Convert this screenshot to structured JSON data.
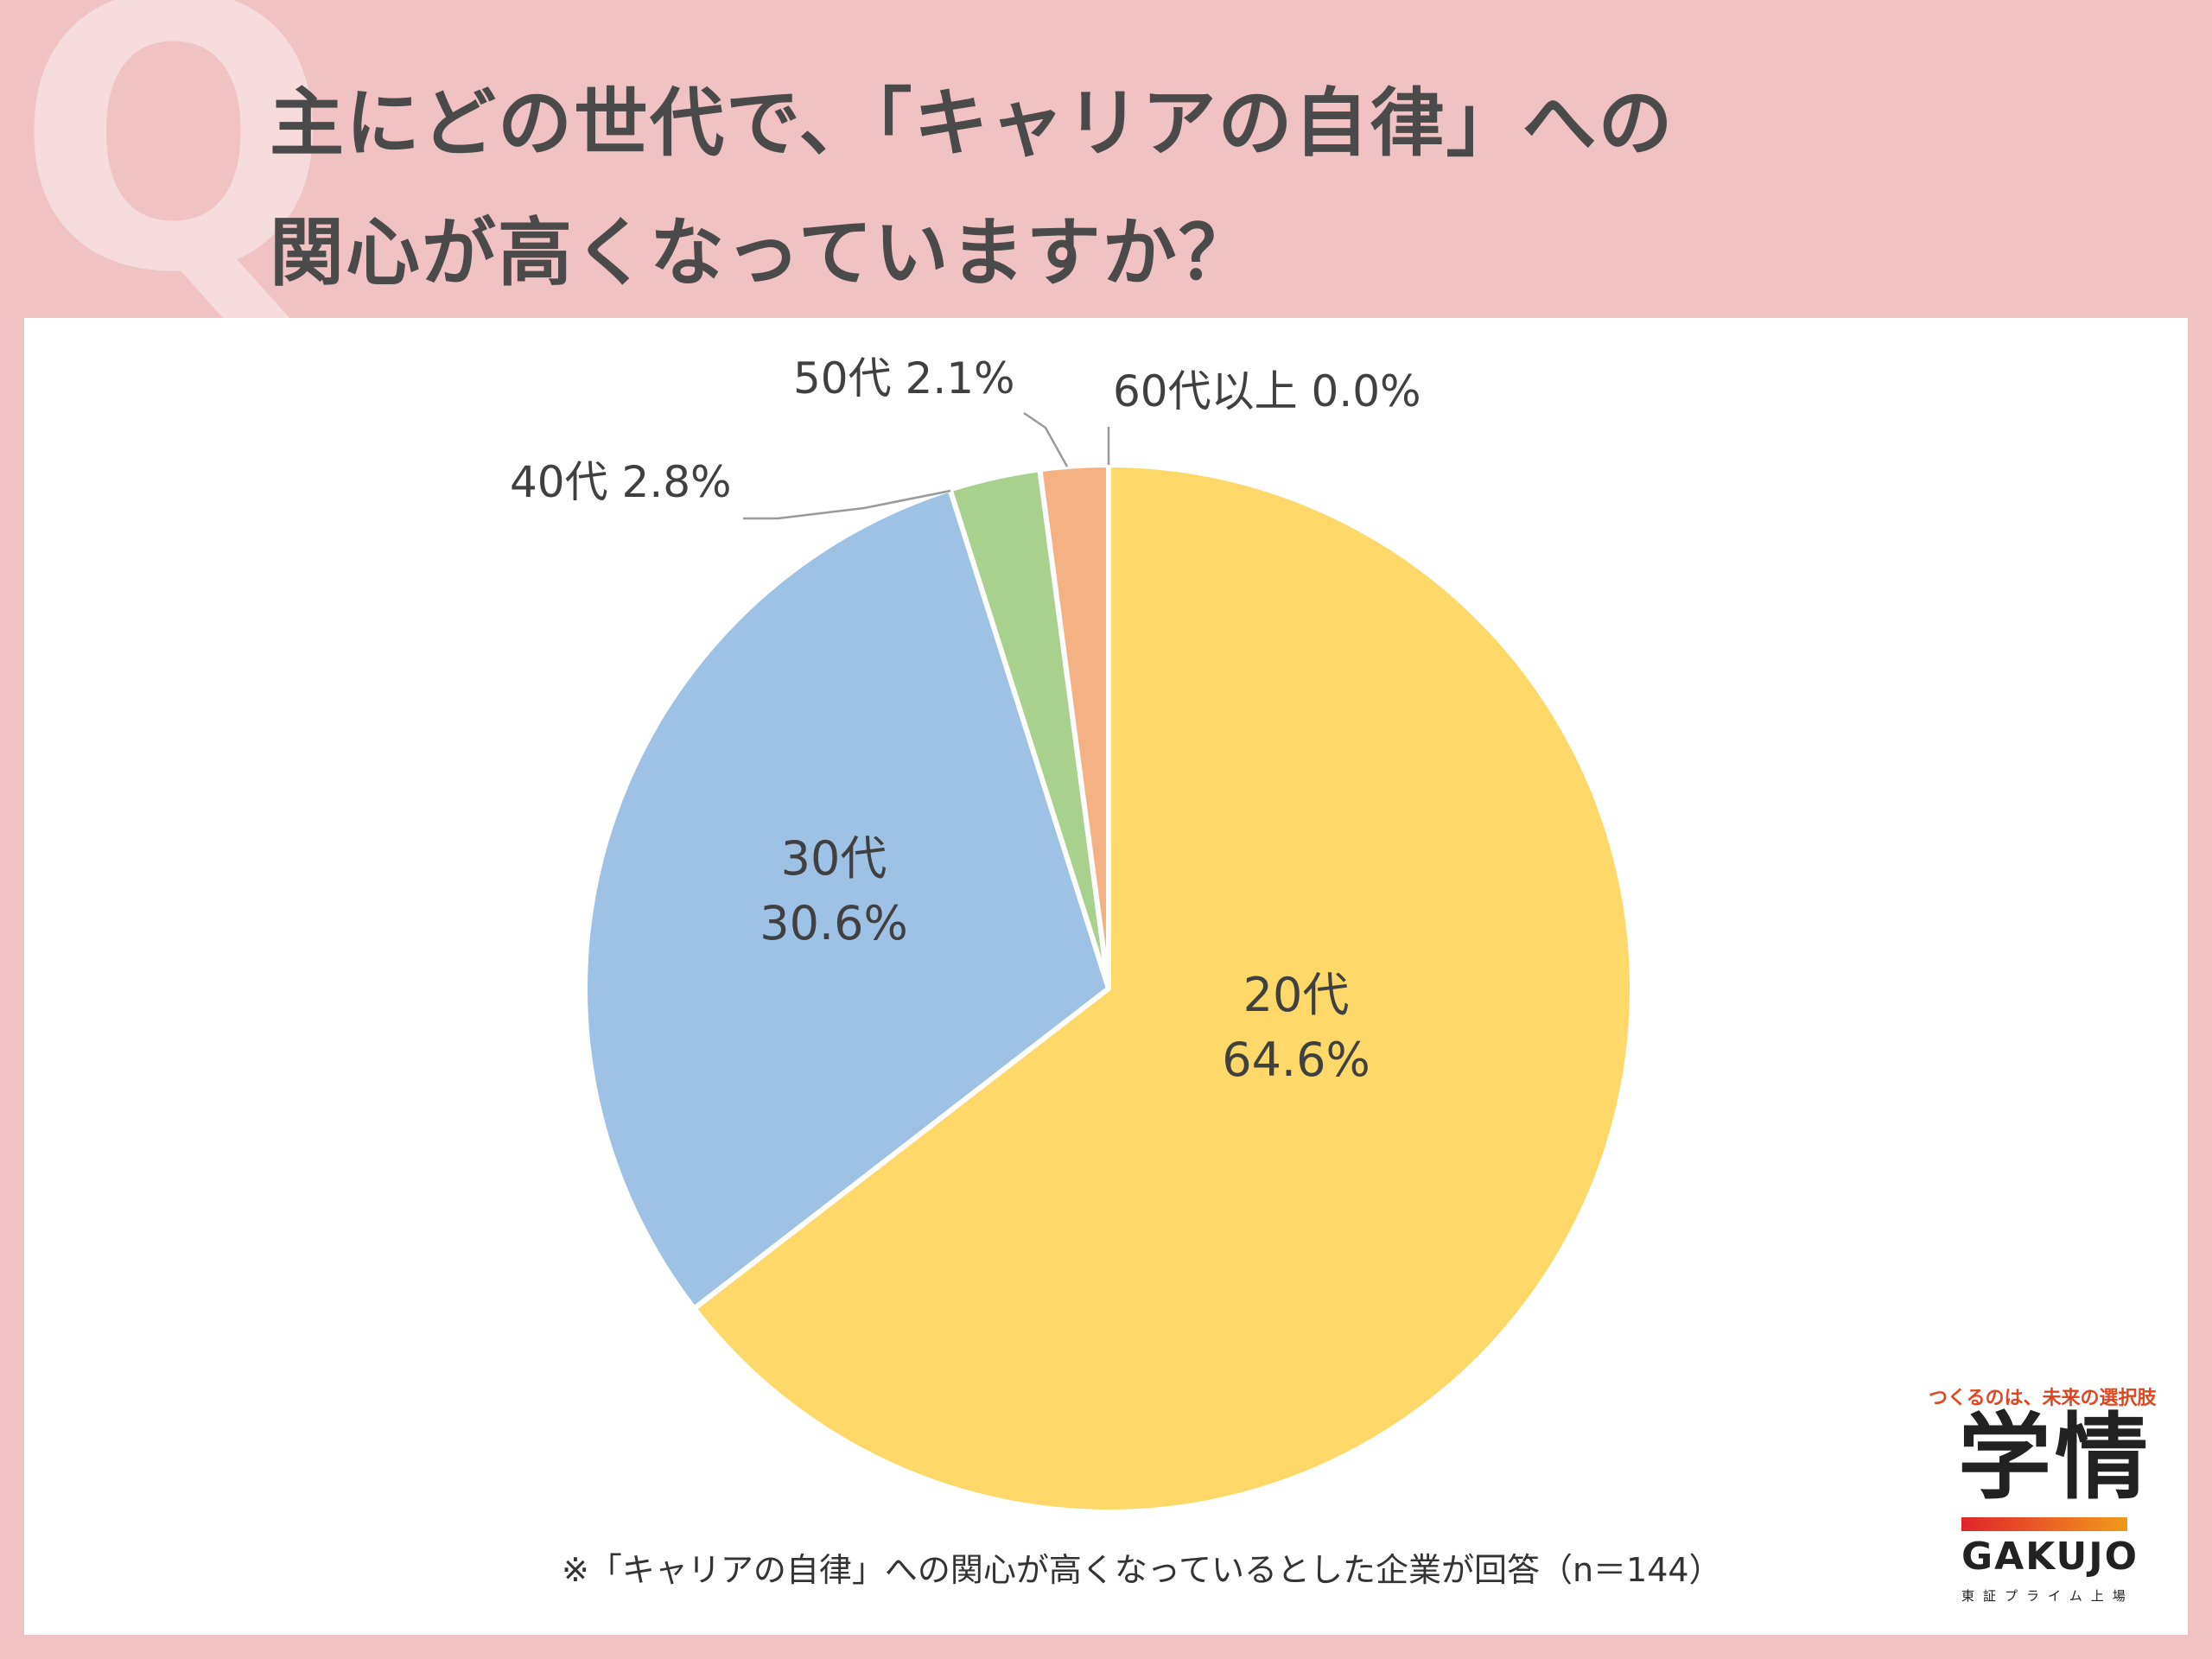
{
  "header": {
    "q_mark": "Q",
    "question_line1": "主にどの世代で、「キャリアの自律」への",
    "question_line2": "関心が高くなっていますか？"
  },
  "chart_data": {
    "type": "pie",
    "title": "主にどの世代で、「キャリアの自律」への関心が高くなっていますか？",
    "slices": [
      {
        "label": "20代",
        "value": 64.6,
        "value_text": "64.6%",
        "color": "#fed96a"
      },
      {
        "label": "30代",
        "value": 30.6,
        "value_text": "30.6%",
        "color": "#9ec2e6"
      },
      {
        "label": "40代",
        "value": 2.8,
        "value_text": "2.8%",
        "color": "#a8d18d"
      },
      {
        "label": "50代",
        "value": 2.1,
        "value_text": "2.1%",
        "color": "#f4b184"
      },
      {
        "label": "60代以上",
        "value": 0.0,
        "value_text": "0.0%",
        "color": "#c9c9c9"
      }
    ],
    "labels_display": {
      "s20": [
        "20代",
        "64.6%"
      ],
      "s30": [
        "30代",
        "30.6%"
      ],
      "s40": "40代 2.8%",
      "s50": "50代 2.1%",
      "s60": "60代以上 0.0%"
    },
    "note": "※「キャリアの自律」への関心が高くなっているとした企業が回答（n＝144）"
  },
  "brand": {
    "tagline": "つくるのは、未来の選択肢",
    "logo": "学情",
    "logo_en": "GAKUJO",
    "sub": "東証プライム上場"
  }
}
